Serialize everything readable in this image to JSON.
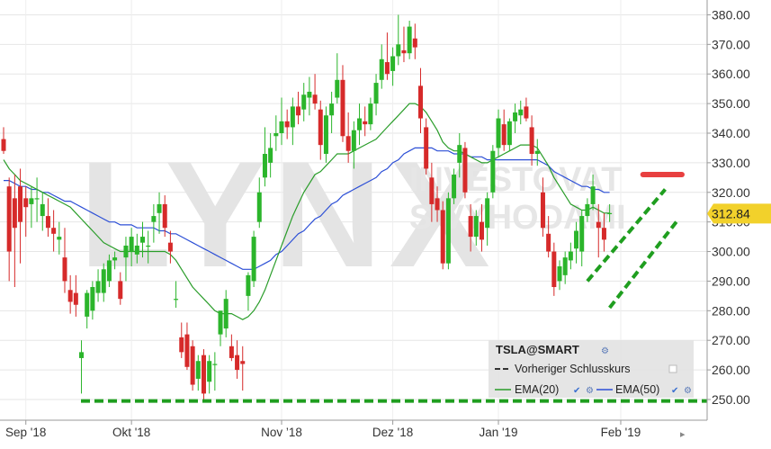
{
  "watermark": {
    "brand": "LYNX",
    "line1": "INVESTOVAT",
    "line2": "S VÝHODAMI"
  },
  "legend": {
    "symbol": "TSLA@SMART",
    "prev_close": "Vorheriger Schlusskurs",
    "ema20": "EMA(20)",
    "ema50": "EMA(50)"
  },
  "last_price_label": "312.84",
  "colors": {
    "up": "#2bb52b",
    "down": "#d62a2a",
    "ema20": "#2a9d2a",
    "ema50": "#2c4fd6",
    "annotation_green": "#1f9e1f",
    "annotation_red": "#e84040",
    "price_badge": "#f2d12b"
  },
  "chart_data": {
    "type": "candlestick",
    "ylim": [
      243,
      385
    ],
    "y_ticks": [
      "250.00",
      "260.00",
      "270.00",
      "280.00",
      "290.00",
      "300.00",
      "310.00",
      "320.00",
      "330.00",
      "340.00",
      "350.00",
      "360.00",
      "370.00",
      "380.00"
    ],
    "x_ticks": [
      {
        "label": "Sep '18",
        "index": 4
      },
      {
        "label": "Okt '18",
        "index": 23
      },
      {
        "label": "Nov ’18",
        "index": 50
      },
      {
        "label": "Dez '18",
        "index": 70
      },
      {
        "label": "Jan '19",
        "index": 89
      },
      {
        "label": "Feb '19",
        "index": 111
      }
    ],
    "candles": [
      {
        "o": 338,
        "h": 342,
        "l": 333,
        "c": 334
      },
      {
        "o": 322,
        "h": 325,
        "l": 290,
        "c": 300
      },
      {
        "o": 318,
        "h": 326,
        "l": 288,
        "c": 308
      },
      {
        "o": 322,
        "h": 328,
        "l": 296,
        "c": 310
      },
      {
        "o": 318,
        "h": 322,
        "l": 305,
        "c": 315
      },
      {
        "o": 316,
        "h": 322,
        "l": 308,
        "c": 318
      },
      {
        "o": 318,
        "h": 325,
        "l": 310,
        "c": 318
      },
      {
        "o": 312,
        "h": 320,
        "l": 307,
        "c": 316
      },
      {
        "o": 312,
        "h": 318,
        "l": 305,
        "c": 308
      },
      {
        "o": 308,
        "h": 314,
        "l": 300,
        "c": 306
      },
      {
        "o": 304,
        "h": 310,
        "l": 299,
        "c": 305
      },
      {
        "o": 298,
        "h": 308,
        "l": 286,
        "c": 290
      },
      {
        "o": 287,
        "h": 292,
        "l": 279,
        "c": 283
      },
      {
        "o": 286,
        "h": 292,
        "l": 278,
        "c": 282
      },
      {
        "o": 264,
        "h": 270,
        "l": 252,
        "c": 266
      },
      {
        "o": 278,
        "h": 287,
        "l": 274,
        "c": 286
      },
      {
        "o": 280,
        "h": 290,
        "l": 277,
        "c": 288
      },
      {
        "o": 286,
        "h": 294,
        "l": 283,
        "c": 290
      },
      {
        "o": 286,
        "h": 296,
        "l": 283,
        "c": 294
      },
      {
        "o": 290,
        "h": 299,
        "l": 288,
        "c": 297
      },
      {
        "o": 297,
        "h": 300,
        "l": 294,
        "c": 298
      },
      {
        "o": 290,
        "h": 293,
        "l": 282,
        "c": 284
      },
      {
        "o": 298,
        "h": 305,
        "l": 290,
        "c": 302
      },
      {
        "o": 300,
        "h": 308,
        "l": 295,
        "c": 305
      },
      {
        "o": 299,
        "h": 306,
        "l": 296,
        "c": 302
      },
      {
        "o": 303,
        "h": 310,
        "l": 298,
        "c": 305
      },
      {
        "o": 302,
        "h": 307,
        "l": 296,
        "c": 302
      },
      {
        "o": 310,
        "h": 316,
        "l": 303,
        "c": 312
      },
      {
        "o": 313,
        "h": 320,
        "l": 306,
        "c": 316
      },
      {
        "o": 316,
        "h": 319,
        "l": 305,
        "c": 308
      },
      {
        "o": 303,
        "h": 307,
        "l": 296,
        "c": 300
      },
      {
        "o": 284,
        "h": 290,
        "l": 281,
        "c": 284
      },
      {
        "o": 271,
        "h": 276,
        "l": 264,
        "c": 266
      },
      {
        "o": 272,
        "h": 276,
        "l": 260,
        "c": 261
      },
      {
        "o": 268,
        "h": 270,
        "l": 253,
        "c": 255
      },
      {
        "o": 257,
        "h": 265,
        "l": 253,
        "c": 263
      },
      {
        "o": 265,
        "h": 267,
        "l": 249,
        "c": 252
      },
      {
        "o": 256,
        "h": 265,
        "l": 252,
        "c": 263
      },
      {
        "o": 262,
        "h": 266,
        "l": 253,
        "c": 262
      },
      {
        "o": 272,
        "h": 280,
        "l": 268,
        "c": 280
      },
      {
        "o": 274,
        "h": 287,
        "l": 271,
        "c": 284
      },
      {
        "o": 268,
        "h": 272,
        "l": 263,
        "c": 264
      },
      {
        "o": 265,
        "h": 270,
        "l": 257,
        "c": 260
      },
      {
        "o": 263,
        "h": 268,
        "l": 253,
        "c": 262
      },
      {
        "o": 285,
        "h": 293,
        "l": 280,
        "c": 292
      },
      {
        "o": 290,
        "h": 307,
        "l": 288,
        "c": 305
      },
      {
        "o": 310,
        "h": 325,
        "l": 308,
        "c": 320
      },
      {
        "o": 325,
        "h": 342,
        "l": 322,
        "c": 333
      },
      {
        "o": 330,
        "h": 340,
        "l": 325,
        "c": 335
      },
      {
        "o": 339,
        "h": 346,
        "l": 334,
        "c": 340
      },
      {
        "o": 340,
        "h": 352,
        "l": 336,
        "c": 344
      },
      {
        "o": 344,
        "h": 348,
        "l": 338,
        "c": 342
      },
      {
        "o": 342,
        "h": 352,
        "l": 336,
        "c": 349
      },
      {
        "o": 349,
        "h": 354,
        "l": 343,
        "c": 346
      },
      {
        "o": 348,
        "h": 357,
        "l": 344,
        "c": 353
      },
      {
        "o": 352,
        "h": 359,
        "l": 346,
        "c": 354
      },
      {
        "o": 353,
        "h": 360,
        "l": 348,
        "c": 350
      },
      {
        "o": 348,
        "h": 351,
        "l": 331,
        "c": 336
      },
      {
        "o": 333,
        "h": 349,
        "l": 330,
        "c": 346
      },
      {
        "o": 346,
        "h": 354,
        "l": 340,
        "c": 350
      },
      {
        "o": 352,
        "h": 367,
        "l": 350,
        "c": 358
      },
      {
        "o": 358,
        "h": 363,
        "l": 337,
        "c": 339
      },
      {
        "o": 339,
        "h": 347,
        "l": 330,
        "c": 334
      },
      {
        "o": 334,
        "h": 344,
        "l": 328,
        "c": 341
      },
      {
        "o": 341,
        "h": 350,
        "l": 336,
        "c": 345
      },
      {
        "o": 344,
        "h": 349,
        "l": 339,
        "c": 343
      },
      {
        "o": 343,
        "h": 352,
        "l": 341,
        "c": 350
      },
      {
        "o": 350,
        "h": 360,
        "l": 346,
        "c": 357
      },
      {
        "o": 358,
        "h": 370,
        "l": 355,
        "c": 365
      },
      {
        "o": 364,
        "h": 374,
        "l": 358,
        "c": 360
      },
      {
        "o": 361,
        "h": 369,
        "l": 356,
        "c": 366
      },
      {
        "o": 366,
        "h": 380,
        "l": 363,
        "c": 370
      },
      {
        "o": 368,
        "h": 376,
        "l": 364,
        "c": 367
      },
      {
        "o": 367,
        "h": 378,
        "l": 365,
        "c": 376
      },
      {
        "o": 372,
        "h": 377,
        "l": 365,
        "c": 369
      },
      {
        "o": 356,
        "h": 362,
        "l": 340,
        "c": 345
      },
      {
        "o": 342,
        "h": 345,
        "l": 326,
        "c": 328
      },
      {
        "o": 325,
        "h": 330,
        "l": 310,
        "c": 316
      },
      {
        "o": 318,
        "h": 322,
        "l": 310,
        "c": 314
      },
      {
        "o": 314,
        "h": 317,
        "l": 294,
        "c": 296
      },
      {
        "o": 296,
        "h": 320,
        "l": 294,
        "c": 318
      },
      {
        "o": 318,
        "h": 328,
        "l": 316,
        "c": 326
      },
      {
        "o": 330,
        "h": 340,
        "l": 325,
        "c": 336
      },
      {
        "o": 335,
        "h": 337,
        "l": 318,
        "c": 320
      },
      {
        "o": 312,
        "h": 316,
        "l": 300,
        "c": 305
      },
      {
        "o": 305,
        "h": 314,
        "l": 302,
        "c": 312
      },
      {
        "o": 310,
        "h": 316,
        "l": 300,
        "c": 304
      },
      {
        "o": 308,
        "h": 320,
        "l": 302,
        "c": 318
      },
      {
        "o": 320,
        "h": 336,
        "l": 318,
        "c": 334
      },
      {
        "o": 335,
        "h": 348,
        "l": 332,
        "c": 345
      },
      {
        "o": 343,
        "h": 348,
        "l": 334,
        "c": 336
      },
      {
        "o": 336,
        "h": 345,
        "l": 334,
        "c": 344
      },
      {
        "o": 344,
        "h": 350,
        "l": 340,
        "c": 347
      },
      {
        "o": 346,
        "h": 351,
        "l": 343,
        "c": 348
      },
      {
        "o": 349,
        "h": 352,
        "l": 344,
        "c": 345
      },
      {
        "o": 342,
        "h": 346,
        "l": 329,
        "c": 333
      },
      {
        "o": 333,
        "h": 338,
        "l": 329,
        "c": 334
      },
      {
        "o": 320,
        "h": 325,
        "l": 305,
        "c": 308
      },
      {
        "o": 306,
        "h": 312,
        "l": 298,
        "c": 300
      },
      {
        "o": 300,
        "h": 303,
        "l": 285,
        "c": 288
      },
      {
        "o": 290,
        "h": 297,
        "l": 287,
        "c": 295
      },
      {
        "o": 292,
        "h": 300,
        "l": 289,
        "c": 298
      },
      {
        "o": 297,
        "h": 303,
        "l": 294,
        "c": 300
      },
      {
        "o": 301,
        "h": 310,
        "l": 296,
        "c": 307
      },
      {
        "o": 300,
        "h": 314,
        "l": 295,
        "c": 312
      },
      {
        "o": 312,
        "h": 318,
        "l": 310,
        "c": 316
      },
      {
        "o": 316,
        "h": 326,
        "l": 314,
        "c": 322
      },
      {
        "o": 310,
        "h": 316,
        "l": 298,
        "c": 308
      },
      {
        "o": 308,
        "h": 313,
        "l": 300,
        "c": 304
      },
      {
        "o": 313,
        "h": 316,
        "l": 310,
        "c": 313
      }
    ],
    "ema20": [
      331,
      328,
      326,
      324,
      323,
      322,
      321,
      320,
      319,
      318,
      317,
      316,
      315,
      313,
      311,
      309,
      307,
      305,
      303,
      302,
      301,
      300,
      300,
      300,
      300,
      300,
      300,
      300,
      300,
      300,
      299,
      297,
      294,
      291,
      288,
      286,
      284,
      282,
      280,
      279,
      279,
      279,
      278,
      277,
      278,
      280,
      283,
      287,
      292,
      297,
      302,
      307,
      312,
      316,
      320,
      323,
      326,
      327,
      329,
      331,
      333,
      333,
      333,
      334,
      335,
      336,
      337,
      338,
      340,
      342,
      344,
      346,
      348,
      350,
      350,
      349,
      347,
      344,
      341,
      337,
      335,
      334,
      334,
      333,
      332,
      331,
      330,
      330,
      331,
      332,
      333,
      334,
      335,
      336,
      336,
      336,
      335,
      332,
      329,
      325,
      322,
      319,
      316,
      315,
      314,
      314,
      315,
      314,
      313,
      313
    ],
    "ema50": [
      324,
      324,
      323,
      322,
      322,
      321,
      321,
      320,
      320,
      319,
      318,
      317,
      317,
      316,
      315,
      314,
      313,
      312,
      311,
      310,
      310,
      309,
      309,
      309,
      308,
      308,
      308,
      308,
      307,
      307,
      306,
      306,
      305,
      304,
      303,
      302,
      301,
      300,
      299,
      298,
      297,
      296,
      295,
      294,
      294,
      294,
      295,
      296,
      297,
      299,
      300,
      302,
      304,
      306,
      307,
      309,
      311,
      312,
      314,
      316,
      317,
      319,
      320,
      321,
      322,
      323,
      324,
      325,
      327,
      328,
      330,
      331,
      333,
      334,
      335,
      335,
      335,
      335,
      334,
      334,
      334,
      333,
      333,
      333,
      332,
      332,
      332,
      331,
      331,
      331,
      331,
      331,
      331,
      331,
      331,
      331,
      331,
      330,
      329,
      327,
      326,
      325,
      324,
      323,
      322,
      322,
      321,
      321,
      320,
      320
    ],
    "prev_close_y": 249.5,
    "resistance_y": 326,
    "last_price": 312.84
  }
}
